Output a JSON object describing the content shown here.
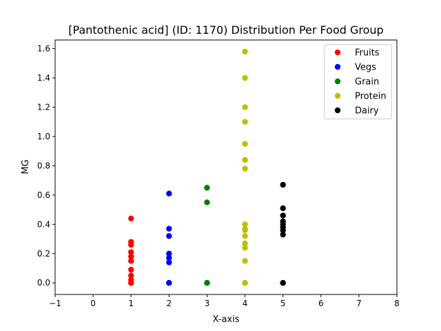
{
  "chart_data": {
    "type": "scatter",
    "title": "[Pantothenic acid] (ID: 1170) Distribution Per Food Group",
    "xlabel": "X-axis",
    "ylabel": "MG",
    "xlim": [
      -1,
      8
    ],
    "ylim": [
      -0.079,
      1.659
    ],
    "xticks": [
      -1,
      0,
      1,
      2,
      3,
      4,
      5,
      6,
      7,
      8
    ],
    "yticks": [
      0.0,
      0.2,
      0.4,
      0.6,
      0.8,
      1.0,
      1.2,
      1.4,
      1.6
    ],
    "xtick_labels": [
      "−1",
      "0",
      "1",
      "2",
      "3",
      "4",
      "5",
      "6",
      "7",
      "8"
    ],
    "ytick_labels": [
      "0.0",
      "0.2",
      "0.4",
      "0.6",
      "0.8",
      "1.0",
      "1.2",
      "1.4",
      "1.6"
    ],
    "grid": false,
    "legend_position": "top-right",
    "series": [
      {
        "name": "Fruits",
        "color": "#ff0000",
        "x": 1,
        "values": [
          0.0,
          0.0,
          0.02,
          0.05,
          0.09,
          0.15,
          0.18,
          0.21,
          0.26,
          0.28,
          0.44
        ]
      },
      {
        "name": "Vegs",
        "color": "#0000ff",
        "x": 2,
        "values": [
          0.0,
          0.0,
          0.14,
          0.17,
          0.2,
          0.32,
          0.37,
          0.61
        ]
      },
      {
        "name": "Grain",
        "color": "#008000",
        "x": 3,
        "values": [
          0.0,
          0.0,
          0.55,
          0.65
        ]
      },
      {
        "name": "Protein",
        "color": "#bfbf00",
        "x": 4,
        "values": [
          0.0,
          0.0,
          0.15,
          0.24,
          0.27,
          0.32,
          0.36,
          0.37,
          0.4,
          0.78,
          0.84,
          0.95,
          1.1,
          1.2,
          1.4,
          1.58
        ]
      },
      {
        "name": "Dairy",
        "color": "#000000",
        "x": 5,
        "values": [
          0.0,
          0.0,
          0.33,
          0.36,
          0.38,
          0.4,
          0.42,
          0.46,
          0.51,
          0.67
        ]
      }
    ]
  }
}
